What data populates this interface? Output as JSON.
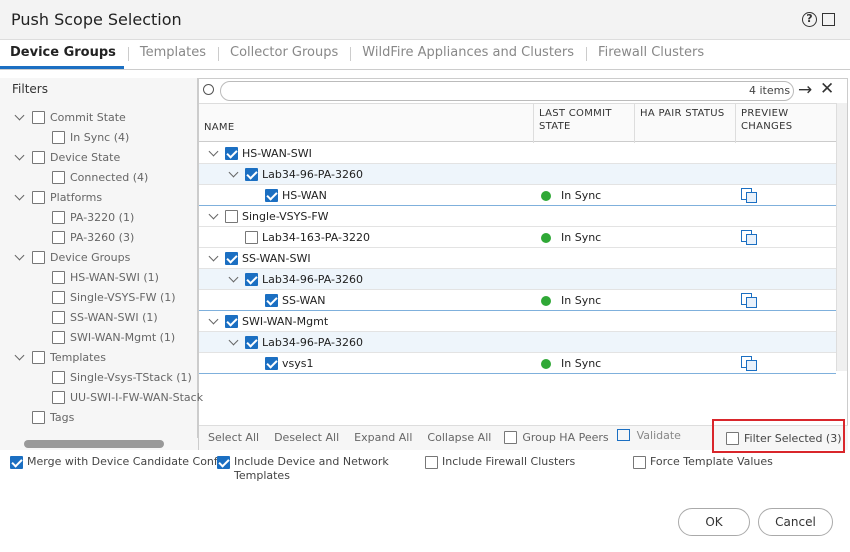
{
  "dialog": {
    "title": "Push Scope Selection",
    "tabs": [
      "Device Groups",
      "Templates",
      "Collector Groups",
      "WildFire Appliances and Clusters",
      "Firewall Clusters"
    ],
    "filters": {
      "title": "Filters",
      "groups": [
        {
          "label": "Commit State",
          "children": [
            "In Sync (4)"
          ]
        },
        {
          "label": "Device State",
          "children": [
            "Connected (4)"
          ]
        },
        {
          "label": "Platforms",
          "children": [
            "PA-3220 (1)",
            "PA-3260 (3)"
          ]
        },
        {
          "label": "Device Groups",
          "children": [
            "HS-WAN-SWI (1)",
            "Single-VSYS-FW (1)",
            "SS-WAN-SWI (1)",
            "SWI-WAN-Mgmt (1)"
          ]
        },
        {
          "label": "Templates",
          "children": [
            "Single-Vsys-TStack (1)",
            "UU-SWI-I-FW-WAN-Stack"
          ]
        },
        {
          "label": "Tags",
          "children": []
        }
      ]
    },
    "search": {
      "count": "4 items"
    },
    "table": {
      "columns": [
        "NAME",
        "LAST COMMIT STATE",
        "HA PAIR STATUS",
        "PREVIEW CHANGES"
      ],
      "tree": [
        {
          "name": "HS-WAN-SWI",
          "checked": true,
          "children": [
            {
              "name": "Lab34-96-PA-3260",
              "checked": true,
              "children": [
                {
                  "name": "HS-WAN",
                  "checked": true,
                  "commit_state": "In Sync"
                }
              ]
            }
          ]
        },
        {
          "name": "Single-VSYS-FW",
          "checked": false,
          "children": [
            {
              "name": "Lab34-163-PA-3220",
              "checked": false,
              "commit_state": "In Sync"
            }
          ]
        },
        {
          "name": "SS-WAN-SWI",
          "checked": true,
          "children": [
            {
              "name": "Lab34-96-PA-3260",
              "checked": true,
              "children": [
                {
                  "name": "SS-WAN",
                  "checked": true,
                  "commit_state": "In Sync"
                }
              ]
            }
          ]
        },
        {
          "name": "SWI-WAN-Mgmt",
          "checked": true,
          "children": [
            {
              "name": "Lab34-96-PA-3260",
              "checked": true,
              "children": [
                {
                  "name": "vsys1",
                  "checked": true,
                  "commit_state": "In Sync"
                }
              ]
            }
          ]
        }
      ]
    },
    "actions": [
      "Select All",
      "Deselect All",
      "Expand All",
      "Collapse All"
    ],
    "group_ha_peers": {
      "label": "Group HA Peers",
      "checked": false
    },
    "validate": "Validate",
    "filter_selected": {
      "label": "Filter Selected (3)",
      "checked": false
    },
    "options": [
      {
        "label": "Merge with Device Candidate Config",
        "checked": true
      },
      {
        "label": "Include Device and Network Templates",
        "checked": true
      },
      {
        "label": "Include Firewall Clusters",
        "checked": false
      },
      {
        "label": "Force Template Values",
        "checked": false
      }
    ],
    "buttons": [
      "OK",
      "Cancel"
    ]
  }
}
